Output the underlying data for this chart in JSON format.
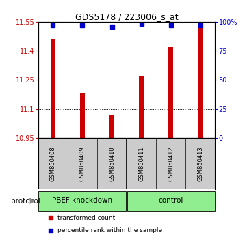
{
  "title": "GDS5178 / 223006_s_at",
  "samples": [
    "GSM850408",
    "GSM850409",
    "GSM850410",
    "GSM850411",
    "GSM850412",
    "GSM850413"
  ],
  "red_values": [
    11.46,
    11.18,
    11.07,
    11.27,
    11.42,
    11.53
  ],
  "blue_values": [
    97,
    97,
    96,
    98,
    97,
    97
  ],
  "ylim_left": [
    10.95,
    11.55
  ],
  "ylim_right": [
    0,
    100
  ],
  "yticks_left": [
    10.95,
    11.1,
    11.25,
    11.4,
    11.55
  ],
  "yticks_right": [
    0,
    25,
    50,
    75,
    100
  ],
  "ytick_labels_left": [
    "10.95",
    "11.1",
    "11.25",
    "11.4",
    "11.55"
  ],
  "ytick_labels_right": [
    "0",
    "25",
    "50",
    "75",
    "100%"
  ],
  "bar_color": "#cc0000",
  "dot_color": "#0000cc",
  "protocol_label": "protocol",
  "background_color": "#ffffff",
  "sample_bg": "#cccccc",
  "group1_label": "PBEF knockdown",
  "group2_label": "control",
  "group_color": "#90EE90",
  "legend_red_label": "transformed count",
  "legend_blue_label": "percentile rank within the sample"
}
